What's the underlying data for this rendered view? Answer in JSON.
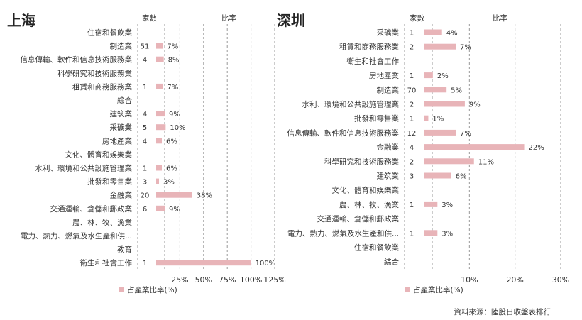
{
  "source_note": "資料來源：陸股日收盤表排行",
  "colors": {
    "bar": "#e8b4b8",
    "grid": "#999999",
    "text": "#333333"
  },
  "chart_data": [
    {
      "type": "bar",
      "title": "上海",
      "count_header": "家數",
      "ratio_header": "比率",
      "legend": "占產業比率(%)",
      "xlim": [
        0,
        125
      ],
      "ticks": [
        "25%",
        "50%",
        "75%",
        "100%",
        "125%"
      ],
      "tick_values": [
        25,
        50,
        75,
        100,
        125
      ],
      "categories": [
        "住宿和餐飲業",
        "制造業",
        "信息傳輸、軟件和信息技術服務業",
        "科學研究和技術服務業",
        "租賃和商務服務業",
        "綜合",
        "建筑業",
        "采礦業",
        "房地產業",
        "文化、體育和娛樂業",
        "水利、環境和公共設施管理業",
        "批發和零售業",
        "金融業",
        "交通運輸、倉儲和郵政業",
        "農、林、牧、漁業",
        "電力、熱力、燃氣及水生產和供...",
        "教育",
        "衛生和社會工作"
      ],
      "counts": [
        "",
        "51",
        "4",
        "",
        "1",
        "",
        "4",
        "5",
        "4",
        "",
        "1",
        "3",
        "20",
        "6",
        "",
        "",
        "",
        "1"
      ],
      "values": [
        null,
        7,
        8,
        null,
        7,
        null,
        9,
        10,
        6,
        null,
        6,
        3,
        38,
        9,
        null,
        null,
        null,
        100
      ],
      "labels": [
        "",
        "7%",
        "8%",
        "",
        "7%",
        "",
        "9%",
        "10%",
        "6%",
        "",
        "6%",
        "3%",
        "38%",
        "9%",
        "",
        "",
        "",
        "100%"
      ]
    },
    {
      "type": "bar",
      "title": "深圳",
      "count_header": "家數",
      "ratio_header": "比率",
      "legend": "占產業比率(%)",
      "xlim": [
        0,
        30
      ],
      "ticks": [
        "10%",
        "20%",
        "30%"
      ],
      "tick_values": [
        10,
        20,
        30
      ],
      "categories": [
        "采礦業",
        "租賃和商務服務業",
        "衛生和社會工作",
        "房地產業",
        "制造業",
        "水利、環境和公共設施管理業",
        "批發和零售業",
        "信息傳輸、軟件和信息技術服務業",
        "金融業",
        "科學研究和技術服務業",
        "建筑業",
        "文化、體育和娛樂業",
        "農、林、牧、漁業",
        "交通運輸、倉儲和郵政業",
        "電力、熱力、燃氣及水生產和供...",
        "住宿和餐飲業",
        "綜合"
      ],
      "counts": [
        "1",
        "2",
        "",
        "1",
        "70",
        "2",
        "1",
        "12",
        "4",
        "2",
        "3",
        "",
        "1",
        "",
        "1",
        "",
        ""
      ],
      "values": [
        4,
        7,
        null,
        2,
        5,
        9,
        1,
        7,
        22,
        11,
        6,
        null,
        3,
        null,
        3,
        null,
        null
      ],
      "labels": [
        "4%",
        "7%",
        "",
        "2%",
        "5%",
        "9%",
        "1%",
        "7%",
        "22%",
        "11%",
        "6%",
        "",
        "3%",
        "",
        "3%",
        "",
        ""
      ]
    }
  ]
}
